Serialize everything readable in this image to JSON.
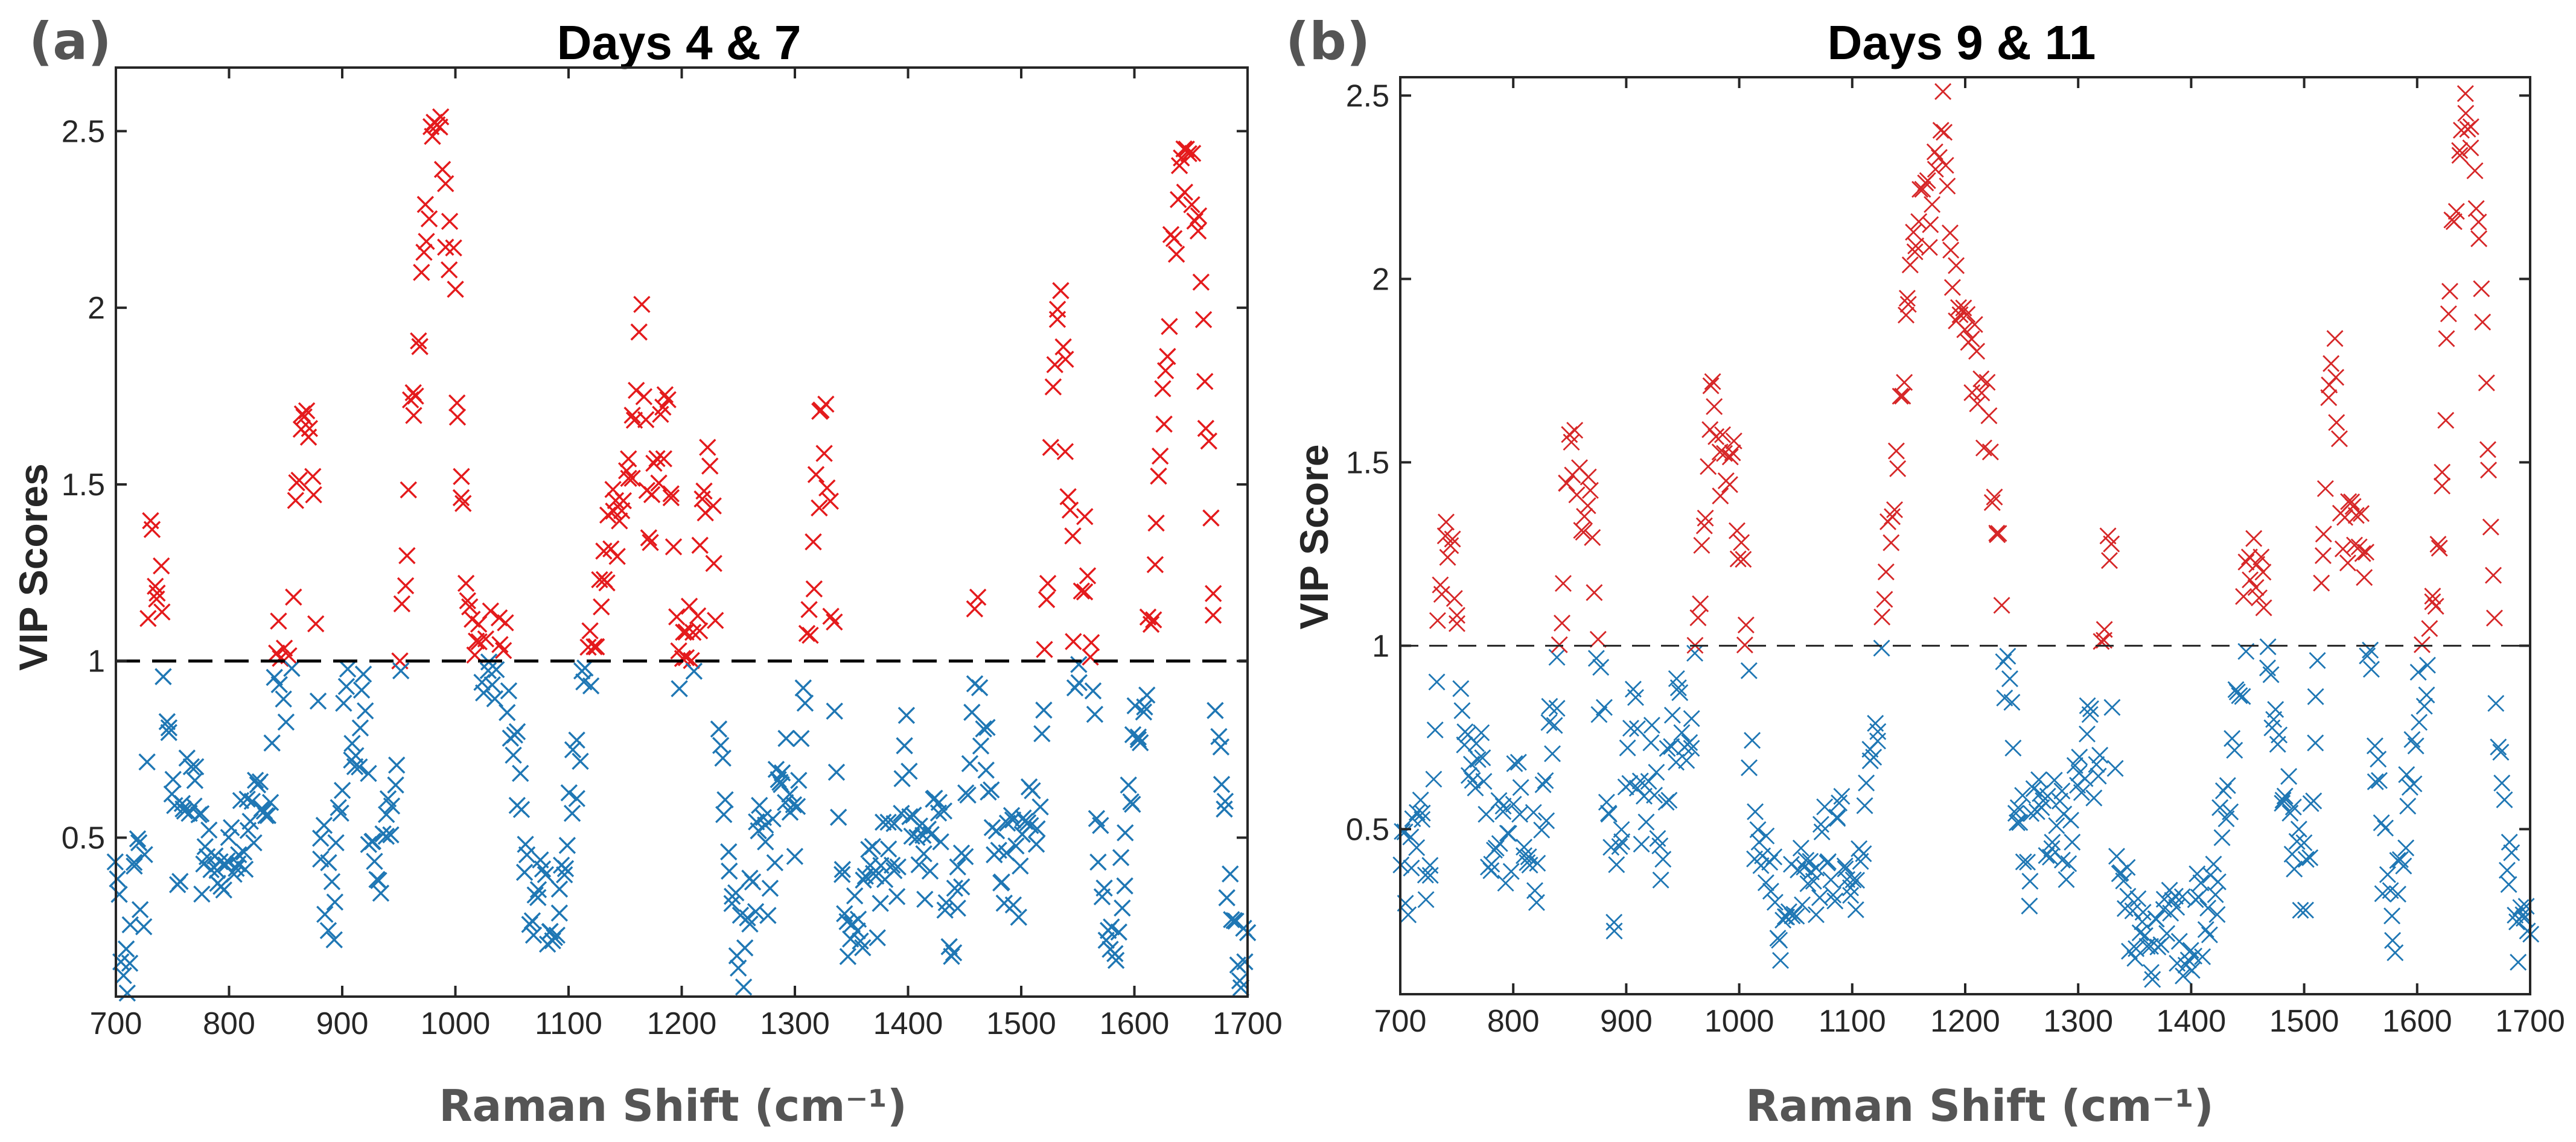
{
  "chart_data": [
    {
      "type": "scatter",
      "panel_label": "(a)",
      "title": "Days 4 & 7",
      "xlabel": "Raman Shift (cm⁻¹)",
      "ylabel": "VIP Scores",
      "xlim": [
        700,
        1700
      ],
      "ylim": [
        0.05,
        2.68
      ],
      "xticks": [
        "700",
        "800",
        "900",
        "1000",
        "1100",
        "1200",
        "1300",
        "1400",
        "1500",
        "1600",
        "1700"
      ],
      "yticks": [
        "0.5",
        "1",
        "1.5",
        "2",
        "2.5"
      ],
      "threshold": 1,
      "marker": "x",
      "colors": {
        "above": "#e41a1c",
        "below": "#1f77b4"
      },
      "anchors": [
        [
          700,
          0.38
        ],
        [
          706,
          0.18
        ],
        [
          712,
          0.08
        ],
        [
          718,
          0.55
        ],
        [
          724,
          0.16
        ],
        [
          730,
          1.38
        ],
        [
          738,
          1.22
        ],
        [
          742,
          0.98
        ],
        [
          748,
          0.8
        ],
        [
          755,
          0.45
        ],
        [
          762,
          0.7
        ],
        [
          770,
          0.62
        ],
        [
          778,
          0.4
        ],
        [
          786,
          0.48
        ],
        [
          794,
          0.35
        ],
        [
          802,
          0.42
        ],
        [
          810,
          0.58
        ],
        [
          818,
          0.45
        ],
        [
          826,
          0.62
        ],
        [
          834,
          0.48
        ],
        [
          840,
          0.9
        ],
        [
          846,
          1.1
        ],
        [
          852,
          0.82
        ],
        [
          858,
          1.35
        ],
        [
          864,
          1.62
        ],
        [
          870,
          1.7
        ],
        [
          876,
          1.35
        ],
        [
          880,
          0.55
        ],
        [
          886,
          0.35
        ],
        [
          892,
          0.28
        ],
        [
          898,
          0.65
        ],
        [
          906,
          0.88
        ],
        [
          912,
          0.6
        ],
        [
          918,
          0.95
        ],
        [
          924,
          0.55
        ],
        [
          930,
          0.3
        ],
        [
          938,
          0.45
        ],
        [
          944,
          0.65
        ],
        [
          950,
          0.9
        ],
        [
          956,
          1.35
        ],
        [
          962,
          1.75
        ],
        [
          968,
          1.95
        ],
        [
          974,
          2.25
        ],
        [
          980,
          2.45
        ],
        [
          986,
          2.62
        ],
        [
          992,
          2.3
        ],
        [
          998,
          2.05
        ],
        [
          1004,
          1.6
        ],
        [
          1010,
          1.2
        ],
        [
          1016,
          1.12
        ],
        [
          1022,
          0.92
        ],
        [
          1030,
          1.08
        ],
        [
          1036,
          0.95
        ],
        [
          1042,
          1.1
        ],
        [
          1048,
          0.82
        ],
        [
          1056,
          0.62
        ],
        [
          1062,
          0.45
        ],
        [
          1068,
          0.22
        ],
        [
          1076,
          0.55
        ],
        [
          1084,
          0.15
        ],
        [
          1090,
          0.35
        ],
        [
          1098,
          0.5
        ],
        [
          1106,
          0.7
        ],
        [
          1114,
          0.95
        ],
        [
          1120,
          1.05
        ],
        [
          1126,
          1.15
        ],
        [
          1134,
          1.35
        ],
        [
          1140,
          1.45
        ],
        [
          1146,
          1.28
        ],
        [
          1152,
          1.5
        ],
        [
          1158,
          1.65
        ],
        [
          1164,
          1.9
        ],
        [
          1170,
          1.42
        ],
        [
          1176,
          1.5
        ],
        [
          1182,
          1.62
        ],
        [
          1188,
          1.72
        ],
        [
          1194,
          1.12
        ],
        [
          1200,
          0.98
        ],
        [
          1206,
          1.15
        ],
        [
          1212,
          1.05
        ],
        [
          1220,
          1.45
        ],
        [
          1226,
          1.6
        ],
        [
          1232,
          0.8
        ],
        [
          1238,
          0.6
        ],
        [
          1244,
          0.4
        ],
        [
          1250,
          0.25
        ],
        [
          1256,
          0.1
        ],
        [
          1262,
          0.3
        ],
        [
          1270,
          0.55
        ],
        [
          1278,
          0.35
        ],
        [
          1286,
          0.78
        ],
        [
          1294,
          0.65
        ],
        [
          1300,
          0.52
        ],
        [
          1306,
          0.9
        ],
        [
          1312,
          1.1
        ],
        [
          1318,
          1.35
        ],
        [
          1324,
          1.8
        ],
        [
          1330,
          1.45
        ],
        [
          1336,
          0.85
        ],
        [
          1342,
          0.3
        ],
        [
          1350,
          0.25
        ],
        [
          1358,
          0.2
        ],
        [
          1366,
          0.45
        ],
        [
          1374,
          0.3
        ],
        [
          1382,
          0.55
        ],
        [
          1390,
          0.4
        ],
        [
          1398,
          0.78
        ],
        [
          1406,
          0.55
        ],
        [
          1414,
          0.35
        ],
        [
          1422,
          0.62
        ],
        [
          1430,
          0.5
        ],
        [
          1438,
          0.2
        ],
        [
          1446,
          0.42
        ],
        [
          1454,
          0.65
        ],
        [
          1460,
          1.2
        ],
        [
          1466,
          0.8
        ],
        [
          1474,
          0.6
        ],
        [
          1482,
          0.35
        ],
        [
          1490,
          0.45
        ],
        [
          1498,
          0.38
        ],
        [
          1506,
          0.62
        ],
        [
          1514,
          0.55
        ],
        [
          1520,
          0.85
        ],
        [
          1526,
          1.5
        ],
        [
          1532,
          2.1
        ],
        [
          1538,
          1.85
        ],
        [
          1544,
          1.3
        ],
        [
          1550,
          0.88
        ],
        [
          1556,
          1.35
        ],
        [
          1562,
          0.95
        ],
        [
          1568,
          0.55
        ],
        [
          1574,
          0.35
        ],
        [
          1582,
          0.18
        ],
        [
          1590,
          0.4
        ],
        [
          1598,
          0.7
        ],
        [
          1604,
          0.85
        ],
        [
          1610,
          0.92
        ],
        [
          1616,
          1.22
        ],
        [
          1622,
          1.55
        ],
        [
          1628,
          1.8
        ],
        [
          1634,
          2.15
        ],
        [
          1640,
          2.32
        ],
        [
          1646,
          2.35
        ],
        [
          1652,
          2.38
        ],
        [
          1658,
          2.25
        ],
        [
          1662,
          1.85
        ],
        [
          1666,
          1.6
        ],
        [
          1670,
          1.12
        ],
        [
          1674,
          0.85
        ],
        [
          1680,
          0.55
        ],
        [
          1686,
          0.3
        ],
        [
          1692,
          0.18
        ],
        [
          1700,
          0.22
        ]
      ]
    },
    {
      "type": "scatter",
      "panel_label": "(b)",
      "title": "Days 9 & 11",
      "xlabel": "Raman Shift (cm⁻¹)",
      "ylabel": "VIP Score",
      "xlim": [
        700,
        1700
      ],
      "ylim": [
        0.05,
        2.55
      ],
      "xticks": [
        "700",
        "800",
        "900",
        "1000",
        "1100",
        "1200",
        "1300",
        "1400",
        "1500",
        "1600",
        "1700"
      ],
      "yticks": [
        "0.5",
        "1",
        "1.5",
        "2",
        "2.5"
      ],
      "threshold": 1,
      "marker": "x",
      "colors": {
        "above": "#d62728",
        "below": "#1f77b4"
      },
      "anchors": [
        [
          700,
          0.5
        ],
        [
          706,
          0.3
        ],
        [
          712,
          0.45
        ],
        [
          718,
          0.6
        ],
        [
          726,
          0.35
        ],
        [
          732,
          0.9
        ],
        [
          738,
          1.2
        ],
        [
          744,
          1.3
        ],
        [
          750,
          1.05
        ],
        [
          756,
          0.85
        ],
        [
          764,
          0.6
        ],
        [
          772,
          0.7
        ],
        [
          780,
          0.45
        ],
        [
          788,
          0.55
        ],
        [
          796,
          0.35
        ],
        [
          804,
          0.65
        ],
        [
          812,
          0.5
        ],
        [
          820,
          0.4
        ],
        [
          828,
          0.6
        ],
        [
          836,
          0.8
        ],
        [
          842,
          1.05
        ],
        [
          848,
          1.45
        ],
        [
          854,
          1.6
        ],
        [
          860,
          1.3
        ],
        [
          866,
          1.45
        ],
        [
          872,
          1.15
        ],
        [
          878,
          0.85
        ],
        [
          884,
          0.55
        ],
        [
          890,
          0.3
        ],
        [
          898,
          0.5
        ],
        [
          906,
          0.85
        ],
        [
          914,
          0.55
        ],
        [
          922,
          0.7
        ],
        [
          930,
          0.45
        ],
        [
          938,
          0.65
        ],
        [
          946,
          0.85
        ],
        [
          952,
          0.6
        ],
        [
          958,
          0.8
        ],
        [
          964,
          1.1
        ],
        [
          970,
          1.4
        ],
        [
          976,
          1.8
        ],
        [
          982,
          1.55
        ],
        [
          988,
          1.4
        ],
        [
          994,
          1.6
        ],
        [
          1000,
          1.2
        ],
        [
          1006,
          1.05
        ],
        [
          1012,
          0.55
        ],
        [
          1020,
          0.3
        ],
        [
          1028,
          0.45
        ],
        [
          1036,
          0.25
        ],
        [
          1044,
          0.4
        ],
        [
          1052,
          0.35
        ],
        [
          1060,
          0.45
        ],
        [
          1068,
          0.3
        ],
        [
          1076,
          0.5
        ],
        [
          1084,
          0.4
        ],
        [
          1092,
          0.5
        ],
        [
          1100,
          0.35
        ],
        [
          1108,
          0.45
        ],
        [
          1114,
          0.6
        ],
        [
          1120,
          0.75
        ],
        [
          1126,
          0.95
        ],
        [
          1132,
          1.25
        ],
        [
          1138,
          1.5
        ],
        [
          1144,
          1.7
        ],
        [
          1150,
          1.95
        ],
        [
          1156,
          2.1
        ],
        [
          1162,
          2.25
        ],
        [
          1168,
          2.15
        ],
        [
          1174,
          2.35
        ],
        [
          1180,
          2.5
        ],
        [
          1186,
          2.2
        ],
        [
          1192,
          1.95
        ],
        [
          1198,
          1.85
        ],
        [
          1204,
          1.8
        ],
        [
          1210,
          1.75
        ],
        [
          1216,
          1.65
        ],
        [
          1222,
          1.55
        ],
        [
          1228,
          1.35
        ],
        [
          1234,
          1.05
        ],
        [
          1240,
          0.75
        ],
        [
          1248,
          0.55
        ],
        [
          1256,
          0.4
        ],
        [
          1264,
          0.65
        ],
        [
          1272,
          0.5
        ],
        [
          1280,
          0.6
        ],
        [
          1288,
          0.45
        ],
        [
          1296,
          0.55
        ],
        [
          1304,
          0.7
        ],
        [
          1310,
          0.85
        ],
        [
          1316,
          0.6
        ],
        [
          1322,
          1.05
        ],
        [
          1328,
          1.3
        ],
        [
          1334,
          0.45
        ],
        [
          1342,
          0.3
        ],
        [
          1350,
          0.2
        ],
        [
          1358,
          0.35
        ],
        [
          1366,
          0.15
        ],
        [
          1374,
          0.3
        ],
        [
          1382,
          0.2
        ],
        [
          1390,
          0.25
        ],
        [
          1398,
          0.15
        ],
        [
          1406,
          0.3
        ],
        [
          1414,
          0.2
        ],
        [
          1422,
          0.35
        ],
        [
          1430,
          0.55
        ],
        [
          1438,
          0.75
        ],
        [
          1444,
          0.95
        ],
        [
          1450,
          1.15
        ],
        [
          1456,
          1.28
        ],
        [
          1462,
          1.2
        ],
        [
          1468,
          0.95
        ],
        [
          1476,
          0.75
        ],
        [
          1484,
          0.6
        ],
        [
          1492,
          0.45
        ],
        [
          1500,
          0.35
        ],
        [
          1506,
          0.55
        ],
        [
          1512,
          0.95
        ],
        [
          1518,
          1.4
        ],
        [
          1524,
          1.85
        ],
        [
          1530,
          1.6
        ],
        [
          1536,
          1.25
        ],
        [
          1542,
          1.35
        ],
        [
          1548,
          1.3
        ],
        [
          1554,
          1.2
        ],
        [
          1560,
          0.85
        ],
        [
          1566,
          0.55
        ],
        [
          1572,
          0.4
        ],
        [
          1580,
          0.25
        ],
        [
          1588,
          0.45
        ],
        [
          1596,
          0.7
        ],
        [
          1604,
          0.88
        ],
        [
          1610,
          0.95
        ],
        [
          1616,
          1.1
        ],
        [
          1622,
          1.45
        ],
        [
          1628,
          1.85
        ],
        [
          1634,
          2.2
        ],
        [
          1640,
          2.4
        ],
        [
          1646,
          2.45
        ],
        [
          1652,
          2.3
        ],
        [
          1658,
          1.85
        ],
        [
          1664,
          1.4
        ],
        [
          1670,
          0.95
        ],
        [
          1676,
          0.6
        ],
        [
          1682,
          0.4
        ],
        [
          1688,
          0.25
        ],
        [
          1694,
          0.15
        ],
        [
          1700,
          0.3
        ]
      ]
    }
  ]
}
